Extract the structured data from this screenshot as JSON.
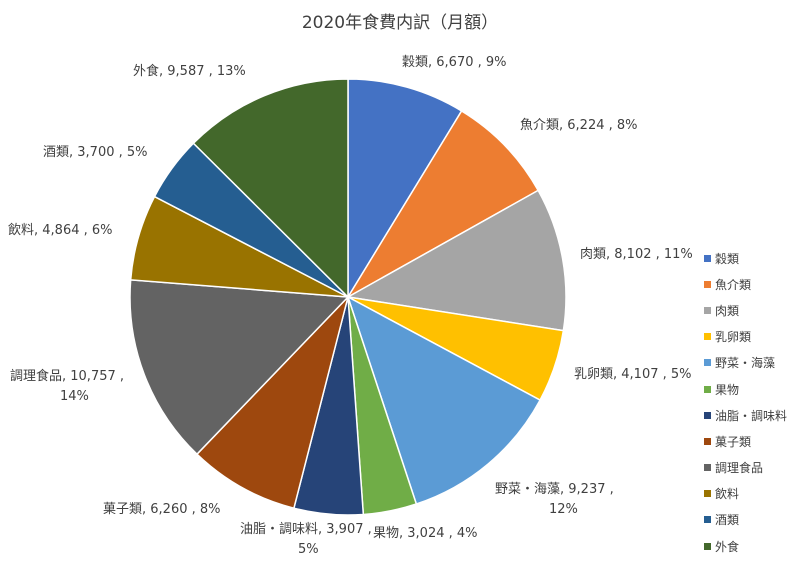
{
  "chart_data": {
    "type": "pie",
    "title": "2020年食費内訳（月額）",
    "legend_position": "right",
    "slices": [
      {
        "name": "穀類",
        "value": 6670,
        "percent": "9%",
        "color": "#4472C4",
        "label": "穀類, 6,670 , 9%"
      },
      {
        "name": "魚介類",
        "value": 6224,
        "percent": "8%",
        "color": "#ED7D31",
        "label": "魚介類, 6,224 , 8%"
      },
      {
        "name": "肉類",
        "value": 8102,
        "percent": "11%",
        "color": "#A5A5A5",
        "label": "肉類, 8,102 , 11%"
      },
      {
        "name": "乳卵類",
        "value": 4107,
        "percent": "5%",
        "color": "#FFC000",
        "label": "乳卵類, 4,107 , 5%"
      },
      {
        "name": "野菜・海藻",
        "value": 9237,
        "percent": "12%",
        "color": "#5B9BD5",
        "label_line1": "野菜・海藻, 9,237 ,",
        "label_line2": "12%"
      },
      {
        "name": "果物",
        "value": 3024,
        "percent": "4%",
        "color": "#70AD47",
        "label": "果物, 3,024 , 4%"
      },
      {
        "name": "油脂・調味料",
        "value": 3907,
        "percent": "5%",
        "color": "#264478",
        "label_line1": "油脂・調味料, 3,907 ,",
        "label_line2": "5%"
      },
      {
        "name": "菓子類",
        "value": 6260,
        "percent": "8%",
        "color": "#9E480E",
        "label": "菓子類, 6,260 , 8%"
      },
      {
        "name": "調理食品",
        "value": 10757,
        "percent": "14%",
        "color": "#636363",
        "label_line1": "調理食品, 10,757 ,",
        "label_line2": "14%"
      },
      {
        "name": "飲料",
        "value": 4864,
        "percent": "6%",
        "color": "#997300",
        "label": "飲料, 4,864 , 6%"
      },
      {
        "name": "酒類",
        "value": 3700,
        "percent": "5%",
        "color": "#255E91",
        "label": "酒類, 3,700 , 5%"
      },
      {
        "name": "外食",
        "value": 9587,
        "percent": "13%",
        "color": "#43682B",
        "label": "外食, 9,587 , 13%"
      }
    ]
  }
}
